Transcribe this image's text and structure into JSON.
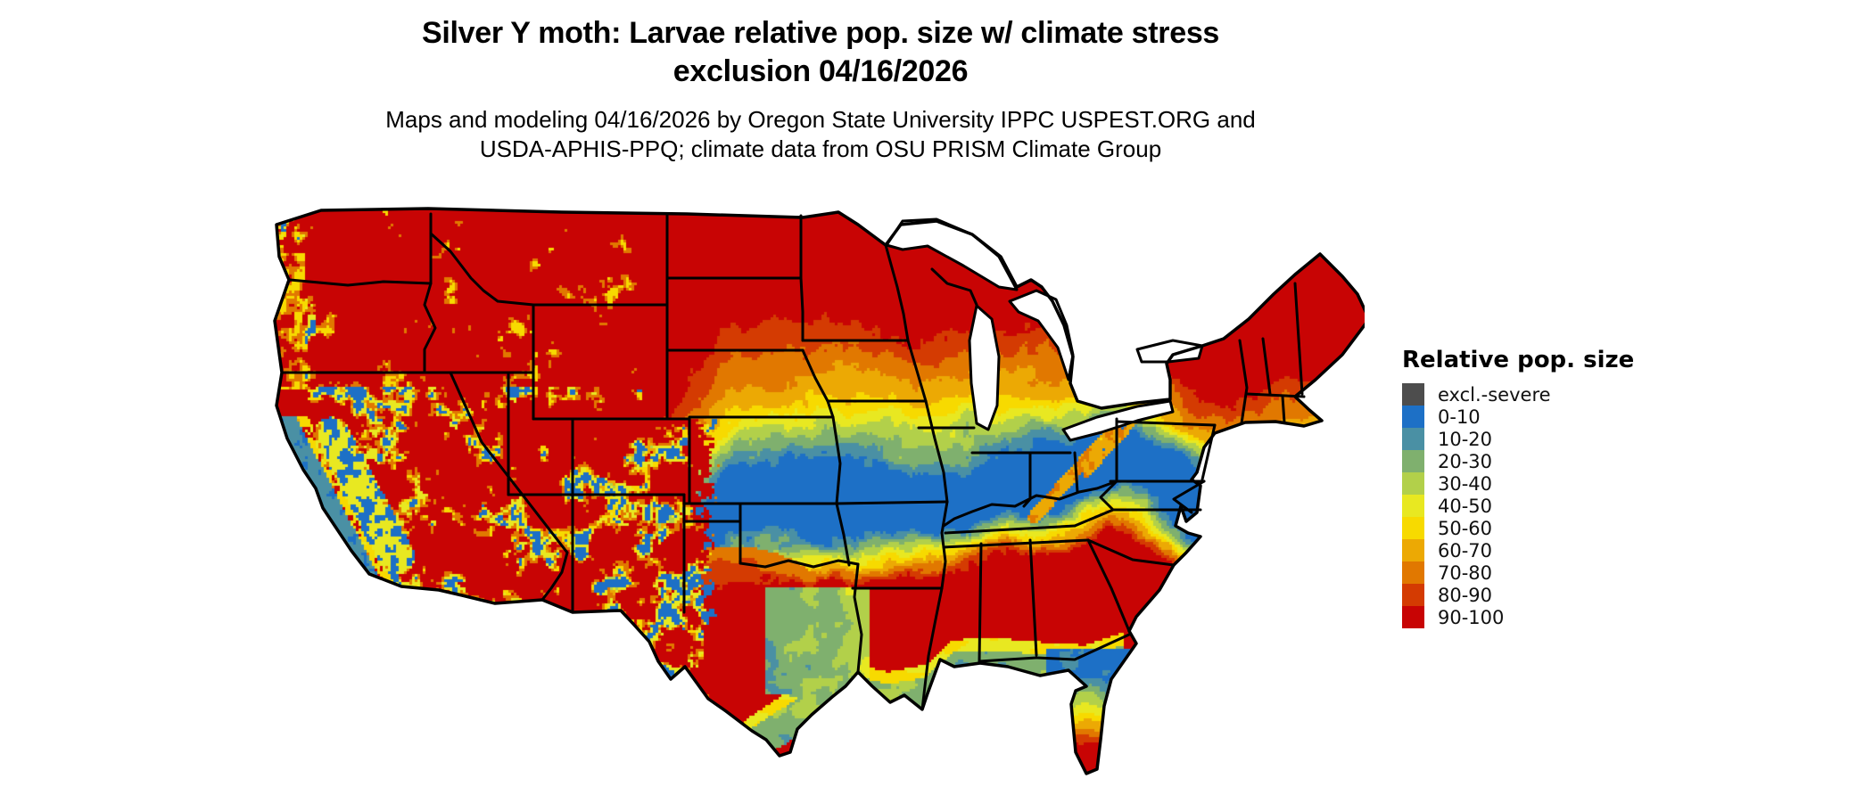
{
  "title": {
    "line1": "Silver Y moth: Larvae relative pop. size w/ climate stress",
    "line2": "exclusion 04/16/2026"
  },
  "subtitle": {
    "line1": "Maps and modeling 04/16/2026 by Oregon State University IPPC USPEST.ORG and",
    "line2": "USDA-APHIS-PPQ; climate data from OSU PRISM Climate Group"
  },
  "map": {
    "region": "contiguous United States",
    "style": "gridded raster of relative population size classes with black state borders, Great Lakes in white"
  },
  "legend": {
    "title": "Relative pop. size",
    "items": [
      {
        "label": "excl.-severe",
        "color": "#4d4d4d"
      },
      {
        "label": "0-10",
        "color": "#1d70c6"
      },
      {
        "label": "10-20",
        "color": "#4a90a4"
      },
      {
        "label": "20-30",
        "color": "#7fb06e"
      },
      {
        "label": "30-40",
        "color": "#b2d04a"
      },
      {
        "label": "40-50",
        "color": "#e8e821"
      },
      {
        "label": "50-60",
        "color": "#f7da00"
      },
      {
        "label": "60-70",
        "color": "#eca904"
      },
      {
        "label": "70-80",
        "color": "#e17800"
      },
      {
        "label": "80-90",
        "color": "#d43b02"
      },
      {
        "label": "90-100",
        "color": "#c80404"
      }
    ]
  }
}
